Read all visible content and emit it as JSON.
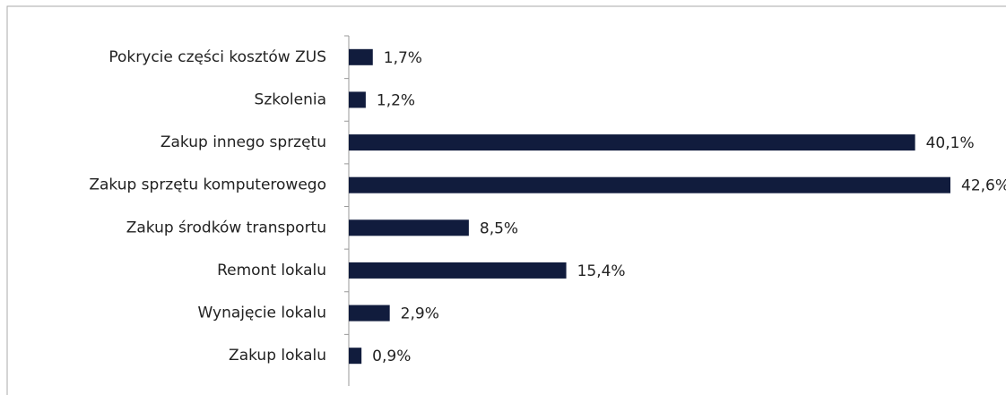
{
  "chart_data": {
    "type": "bar",
    "orientation": "horizontal",
    "categories": [
      "Pokrycie części kosztów ZUS",
      "Szkolenia",
      "Zakup innego sprzętu",
      "Zakup sprzętu komputerowego",
      "Zakup środków transportu",
      "Remont lokalu",
      "Wynajęcie lokalu",
      "Zakup lokalu"
    ],
    "values": [
      1.7,
      1.2,
      40.1,
      42.6,
      8.5,
      15.4,
      2.9,
      0.9
    ],
    "value_labels": [
      "1,7%",
      "1,2%",
      "40,1%",
      "42,6%",
      "8,5%",
      "15,4%",
      "2,9%",
      "0,9%"
    ],
    "color": "#111c3d"
  }
}
